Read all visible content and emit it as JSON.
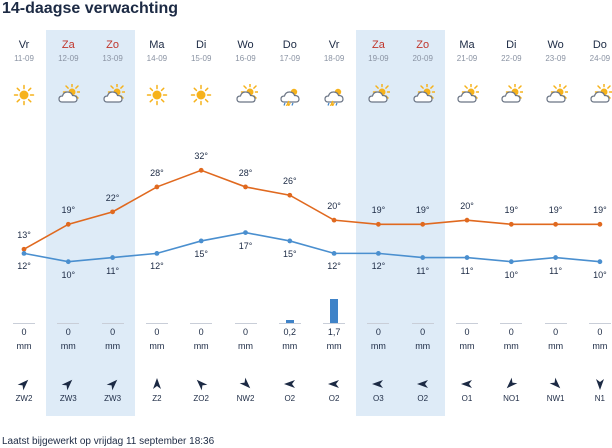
{
  "title": "14-daagse verwachting",
  "footer": "Laatst bijgewerkt op vrijdag 11 september 18:36",
  "colors": {
    "max_line": "#e0691f",
    "min_line": "#4a8fcf",
    "weekend_bg": "#deebf7",
    "weekend_day": "#c0362c"
  },
  "precip_unit": "mm",
  "days": [
    {
      "day": "Vr",
      "date": "11-09",
      "weekend": false,
      "icon": "sun-icon",
      "max": "13°",
      "min": "12°",
      "precip": "0",
      "wind": "ZW2"
    },
    {
      "day": "Za",
      "date": "12-09",
      "weekend": true,
      "icon": "partly-cloudy-icon",
      "max": "19°",
      "min": "10°",
      "precip": "0",
      "wind": "ZW3"
    },
    {
      "day": "Zo",
      "date": "13-09",
      "weekend": true,
      "icon": "partly-cloudy-icon",
      "max": "22°",
      "min": "11°",
      "precip": "0",
      "wind": "ZW3"
    },
    {
      "day": "Ma",
      "date": "14-09",
      "weekend": false,
      "icon": "sun-icon",
      "max": "28°",
      "min": "12°",
      "precip": "0",
      "wind": "Z2"
    },
    {
      "day": "Di",
      "date": "15-09",
      "weekend": false,
      "icon": "sun-icon",
      "max": "32°",
      "min": "15°",
      "precip": "0",
      "wind": "ZO2"
    },
    {
      "day": "Wo",
      "date": "16-09",
      "weekend": false,
      "icon": "partly-cloudy-icon",
      "max": "28°",
      "min": "17°",
      "precip": "0",
      "wind": "NW2"
    },
    {
      "day": "Do",
      "date": "17-09",
      "weekend": false,
      "icon": "thunder-shower-icon",
      "max": "26°",
      "min": "15°",
      "precip": "0,2",
      "wind": "O2"
    },
    {
      "day": "Vr",
      "date": "18-09",
      "weekend": false,
      "icon": "thunder-shower-icon",
      "max": "20°",
      "min": "12°",
      "precip": "1,7",
      "wind": "O2"
    },
    {
      "day": "Za",
      "date": "19-09",
      "weekend": true,
      "icon": "partly-cloudy-icon",
      "max": "19°",
      "min": "12°",
      "precip": "0",
      "wind": "O3"
    },
    {
      "day": "Zo",
      "date": "20-09",
      "weekend": true,
      "icon": "partly-cloudy-icon",
      "max": "19°",
      "min": "11°",
      "precip": "0",
      "wind": "O2"
    },
    {
      "day": "Ma",
      "date": "21-09",
      "weekend": false,
      "icon": "partly-cloudy-icon",
      "max": "20°",
      "min": "11°",
      "precip": "0",
      "wind": "O1"
    },
    {
      "day": "Di",
      "date": "22-09",
      "weekend": false,
      "icon": "partly-cloudy-icon",
      "max": "19°",
      "min": "10°",
      "precip": "0",
      "wind": "NO1"
    },
    {
      "day": "Wo",
      "date": "23-09",
      "weekend": false,
      "icon": "partly-cloudy-icon",
      "max": "19°",
      "min": "11°",
      "precip": "0",
      "wind": "NW1"
    },
    {
      "day": "Do",
      "date": "24-09",
      "weekend": false,
      "icon": "partly-cloudy-icon",
      "max": "19°",
      "min": "10°",
      "precip": "0",
      "wind": "N1"
    }
  ],
  "chart_data": {
    "type": "line",
    "x": [
      "Vr 11-09",
      "Za 12-09",
      "Zo 13-09",
      "Ma 14-09",
      "Di 15-09",
      "Wo 16-09",
      "Do 17-09",
      "Vr 18-09",
      "Za 19-09",
      "Zo 20-09",
      "Ma 21-09",
      "Di 22-09",
      "Wo 23-09",
      "Do 24-09"
    ],
    "series": [
      {
        "values": [
          13,
          19,
          22,
          28,
          32,
          28,
          26,
          20,
          19,
          19,
          20,
          19,
          19,
          19
        ]
      },
      {
        "values": [
          12,
          10,
          11,
          12,
          15,
          17,
          15,
          12,
          12,
          11,
          11,
          10,
          11,
          10
        ]
      }
    ],
    "precipitation_mm": [
      0,
      0,
      0,
      0,
      0,
      0,
      0.2,
      1.7,
      0,
      0,
      0,
      0,
      0,
      0
    ],
    "wind_directions": [
      "ZW",
      "ZW",
      "ZW",
      "Z",
      "ZO",
      "NW",
      "O",
      "O",
      "O",
      "O",
      "O",
      "NO",
      "NW",
      "N"
    ]
  }
}
